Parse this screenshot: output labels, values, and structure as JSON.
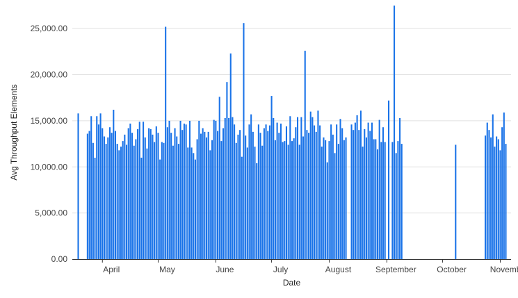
{
  "chart_data": {
    "type": "bar",
    "title": "",
    "xlabel": "Date",
    "ylabel": "Avg Throughput Elements",
    "ylim": [
      0,
      27500
    ],
    "y_ticks": [
      {
        "value": 0,
        "label": "0.00"
      },
      {
        "value": 5000,
        "label": "5,000.00"
      },
      {
        "value": 10000,
        "label": "10,000.00"
      },
      {
        "value": 15000,
        "label": "15,000.00"
      },
      {
        "value": 20000,
        "label": "20,000.00"
      },
      {
        "value": 25000,
        "label": "25,000.00"
      }
    ],
    "x_ticks": [
      {
        "date": "2021-04-01",
        "label": "April"
      },
      {
        "date": "2021-05-01",
        "label": "May"
      },
      {
        "date": "2021-06-01",
        "label": "June"
      },
      {
        "date": "2021-07-01",
        "label": "July"
      },
      {
        "date": "2021-08-01",
        "label": "August"
      },
      {
        "date": "2021-09-01",
        "label": "September"
      },
      {
        "date": "2021-10-01",
        "label": "October"
      },
      {
        "date": "2021-11-01",
        "label": "November"
      }
    ],
    "grid": true,
    "bar_color": "#1a73e8",
    "series": [
      {
        "values": [
          [
            "2021-03-19",
            15800
          ],
          [
            "2021-03-24",
            13600
          ],
          [
            "2021-03-25",
            13900
          ],
          [
            "2021-03-26",
            15500
          ],
          [
            "2021-03-27",
            12600
          ],
          [
            "2021-03-28",
            11000
          ],
          [
            "2021-03-29",
            15500
          ],
          [
            "2021-03-30",
            14600
          ],
          [
            "2021-03-31",
            15800
          ],
          [
            "2021-04-01",
            14200
          ],
          [
            "2021-04-02",
            13300
          ],
          [
            "2021-04-03",
            12500
          ],
          [
            "2021-04-04",
            13200
          ],
          [
            "2021-04-05",
            14300
          ],
          [
            "2021-04-06",
            13700
          ],
          [
            "2021-04-07",
            16200
          ],
          [
            "2021-04-08",
            13900
          ],
          [
            "2021-04-09",
            12500
          ],
          [
            "2021-04-10",
            11800
          ],
          [
            "2021-04-11",
            12200
          ],
          [
            "2021-04-12",
            12800
          ],
          [
            "2021-04-13",
            13500
          ],
          [
            "2021-04-14",
            12400
          ],
          [
            "2021-04-15",
            14200
          ],
          [
            "2021-04-16",
            14700
          ],
          [
            "2021-04-17",
            13700
          ],
          [
            "2021-04-18",
            12300
          ],
          [
            "2021-04-19",
            13000
          ],
          [
            "2021-04-20",
            14100
          ],
          [
            "2021-04-21",
            14900
          ],
          [
            "2021-04-22",
            11000
          ],
          [
            "2021-04-23",
            14900
          ],
          [
            "2021-04-24",
            13200
          ],
          [
            "2021-04-25",
            12000
          ],
          [
            "2021-04-26",
            14200
          ],
          [
            "2021-04-27",
            14100
          ],
          [
            "2021-04-28",
            13500
          ],
          [
            "2021-04-29",
            12700
          ],
          [
            "2021-04-30",
            14400
          ],
          [
            "2021-05-01",
            13700
          ],
          [
            "2021-05-02",
            10800
          ],
          [
            "2021-05-03",
            12700
          ],
          [
            "2021-05-04",
            12600
          ],
          [
            "2021-05-05",
            25200
          ],
          [
            "2021-05-06",
            14300
          ],
          [
            "2021-05-07",
            15000
          ],
          [
            "2021-05-08",
            13700
          ],
          [
            "2021-05-09",
            12300
          ],
          [
            "2021-05-10",
            14200
          ],
          [
            "2021-05-11",
            13300
          ],
          [
            "2021-05-12",
            12500
          ],
          [
            "2021-05-13",
            15000
          ],
          [
            "2021-05-14",
            14000
          ],
          [
            "2021-05-15",
            14700
          ],
          [
            "2021-05-16",
            14600
          ],
          [
            "2021-05-17",
            12100
          ],
          [
            "2021-05-18",
            15000
          ],
          [
            "2021-05-19",
            12100
          ],
          [
            "2021-05-20",
            11500
          ],
          [
            "2021-05-21",
            10800
          ],
          [
            "2021-05-22",
            13000
          ],
          [
            "2021-05-23",
            15000
          ],
          [
            "2021-05-24",
            13600
          ],
          [
            "2021-05-25",
            14200
          ],
          [
            "2021-05-26",
            13800
          ],
          [
            "2021-05-27",
            13200
          ],
          [
            "2021-05-28",
            13800
          ],
          [
            "2021-05-29",
            11800
          ],
          [
            "2021-05-30",
            12900
          ],
          [
            "2021-05-31",
            15100
          ],
          [
            "2021-06-01",
            15000
          ],
          [
            "2021-06-02",
            13900
          ],
          [
            "2021-06-03",
            17600
          ],
          [
            "2021-06-04",
            12800
          ],
          [
            "2021-06-05",
            14200
          ],
          [
            "2021-06-06",
            15300
          ],
          [
            "2021-06-07",
            19200
          ],
          [
            "2021-06-08",
            15300
          ],
          [
            "2021-06-09",
            22300
          ],
          [
            "2021-06-10",
            15400
          ],
          [
            "2021-06-11",
            14600
          ],
          [
            "2021-06-12",
            12600
          ],
          [
            "2021-06-13",
            13500
          ],
          [
            "2021-06-14",
            14000
          ],
          [
            "2021-06-15",
            11100
          ],
          [
            "2021-06-16",
            25600
          ],
          [
            "2021-06-17",
            13400
          ],
          [
            "2021-06-18",
            12100
          ],
          [
            "2021-06-19",
            14600
          ],
          [
            "2021-06-20",
            15700
          ],
          [
            "2021-06-21",
            13800
          ],
          [
            "2021-06-22",
            12200
          ],
          [
            "2021-06-23",
            10400
          ],
          [
            "2021-06-24",
            14600
          ],
          [
            "2021-06-25",
            13700
          ],
          [
            "2021-06-26",
            12300
          ],
          [
            "2021-06-27",
            14200
          ],
          [
            "2021-06-28",
            14600
          ],
          [
            "2021-06-29",
            13900
          ],
          [
            "2021-06-30",
            14500
          ],
          [
            "2021-07-01",
            17700
          ],
          [
            "2021-07-02",
            15300
          ],
          [
            "2021-07-03",
            12900
          ],
          [
            "2021-07-04",
            14800
          ],
          [
            "2021-07-05",
            13700
          ],
          [
            "2021-07-06",
            14700
          ],
          [
            "2021-07-07",
            12700
          ],
          [
            "2021-07-08",
            12800
          ],
          [
            "2021-07-09",
            14400
          ],
          [
            "2021-07-10",
            12400
          ],
          [
            "2021-07-11",
            15500
          ],
          [
            "2021-07-12",
            12800
          ],
          [
            "2021-07-13",
            13100
          ],
          [
            "2021-07-14",
            14300
          ],
          [
            "2021-07-15",
            15400
          ],
          [
            "2021-07-16",
            12400
          ],
          [
            "2021-07-17",
            15400
          ],
          [
            "2021-07-18",
            13300
          ],
          [
            "2021-07-19",
            22600
          ],
          [
            "2021-07-20",
            14000
          ],
          [
            "2021-07-21",
            13700
          ],
          [
            "2021-07-22",
            16000
          ],
          [
            "2021-07-23",
            15400
          ],
          [
            "2021-07-24",
            14500
          ],
          [
            "2021-07-25",
            13800
          ],
          [
            "2021-07-26",
            16100
          ],
          [
            "2021-07-27",
            14500
          ],
          [
            "2021-07-28",
            12200
          ],
          [
            "2021-07-29",
            13200
          ],
          [
            "2021-07-30",
            12900
          ],
          [
            "2021-07-31",
            10500
          ],
          [
            "2021-08-01",
            12800
          ],
          [
            "2021-08-02",
            14600
          ],
          [
            "2021-08-03",
            13500
          ],
          [
            "2021-08-04",
            11500
          ],
          [
            "2021-08-05",
            14600
          ],
          [
            "2021-08-06",
            12500
          ],
          [
            "2021-08-07",
            15200
          ],
          [
            "2021-08-08",
            14200
          ],
          [
            "2021-08-09",
            12900
          ],
          [
            "2021-08-10",
            13200
          ],
          [
            "2021-08-13",
            14600
          ],
          [
            "2021-08-14",
            14000
          ],
          [
            "2021-08-15",
            14800
          ],
          [
            "2021-08-16",
            15600
          ],
          [
            "2021-08-17",
            14000
          ],
          [
            "2021-08-18",
            16100
          ],
          [
            "2021-08-19",
            12200
          ],
          [
            "2021-08-20",
            14100
          ],
          [
            "2021-08-21",
            13200
          ],
          [
            "2021-08-22",
            14800
          ],
          [
            "2021-08-23",
            13900
          ],
          [
            "2021-08-24",
            14800
          ],
          [
            "2021-08-25",
            13000
          ],
          [
            "2021-08-26",
            13000
          ],
          [
            "2021-08-27",
            11900
          ],
          [
            "2021-08-28",
            15100
          ],
          [
            "2021-08-29",
            12700
          ],
          [
            "2021-08-30",
            14300
          ],
          [
            "2021-08-31",
            12700
          ],
          [
            "2021-09-02",
            17200
          ],
          [
            "2021-09-04",
            12700
          ],
          [
            "2021-09-05",
            27500
          ],
          [
            "2021-09-06",
            11500
          ],
          [
            "2021-09-07",
            12800
          ],
          [
            "2021-09-08",
            15300
          ],
          [
            "2021-09-09",
            12500
          ],
          [
            "2021-10-08",
            12400
          ],
          [
            "2021-10-24",
            13400
          ],
          [
            "2021-10-25",
            14800
          ],
          [
            "2021-10-26",
            14000
          ],
          [
            "2021-10-27",
            13200
          ],
          [
            "2021-10-28",
            15700
          ],
          [
            "2021-10-29",
            12200
          ],
          [
            "2021-10-30",
            13300
          ],
          [
            "2021-10-31",
            13000
          ],
          [
            "2021-11-01",
            11800
          ],
          [
            "2021-11-02",
            14300
          ],
          [
            "2021-11-03",
            15900
          ],
          [
            "2021-11-04",
            12500
          ]
        ]
      }
    ]
  }
}
